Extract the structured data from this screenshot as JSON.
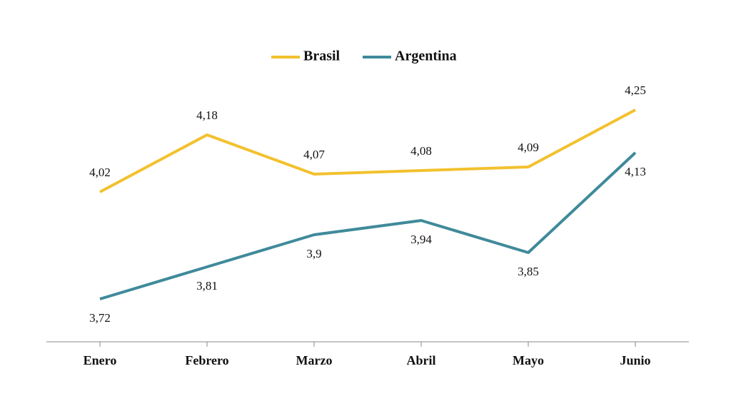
{
  "chart_data": {
    "type": "line",
    "categories": [
      "Enero",
      "Febrero",
      "Marzo",
      "Abril",
      "Mayo",
      "Junio"
    ],
    "series": [
      {
        "name": "Brasil",
        "color": "#f2c12e",
        "values": [
          4.02,
          4.18,
          4.07,
          4.08,
          4.09,
          4.25
        ],
        "value_labels": [
          "4,02",
          "4,18",
          "4,07",
          "4,08",
          "4,09",
          "4,25"
        ]
      },
      {
        "name": "Argentina",
        "color": "#3f8a9a",
        "values": [
          3.72,
          3.81,
          3.9,
          3.94,
          3.85,
          4.13
        ],
        "value_labels": [
          "3,72",
          "3,81",
          "3,9",
          "3,94",
          "3,85",
          "4,13"
        ]
      }
    ],
    "legend": "top"
  }
}
